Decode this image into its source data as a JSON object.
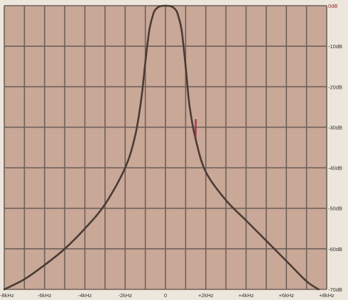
{
  "chart_data": {
    "type": "line",
    "title": "",
    "xlabel": "",
    "ylabel": "",
    "x_ticks": [
      "-8kHz",
      "-6kHz",
      "-4kHz",
      "-2kHz",
      "0",
      "+2kHz",
      "+4kHz",
      "+6kHz",
      "+8kHz"
    ],
    "y_ticks": [
      "0dB",
      "-10dB",
      "-20dB",
      "-30dB",
      "-40dB",
      "-50dB",
      "-60dB",
      "-70dB"
    ],
    "xlim": [
      -8,
      8
    ],
    "ylim": [
      -70,
      0
    ],
    "x_unit": "kHz",
    "y_unit": "dB",
    "grid": true,
    "colors": {
      "background": "#c9a898",
      "grid": "#6e6058",
      "curve": "#4a3c34",
      "reference_label": "#9a2a2a",
      "marker": "#a8324a"
    },
    "series": [
      {
        "x": [
          -8.0,
          -7.0,
          -6.0,
          -5.0,
          -4.0,
          -3.0,
          -2.0,
          -1.5,
          -1.2,
          -1.0,
          -0.8,
          -0.6,
          -0.5,
          -0.3,
          0.0,
          0.3,
          0.5,
          0.6,
          0.8,
          1.0,
          1.2,
          1.5,
          2.0,
          3.0,
          4.0,
          5.0,
          6.0,
          7.0,
          7.6
        ],
        "y": [
          -70.0,
          -67.5,
          -64.0,
          -60.0,
          -55.0,
          -49.0,
          -40.0,
          -32.0,
          -23.0,
          -14.0,
          -6.0,
          -2.0,
          -1.0,
          -0.2,
          0.0,
          -0.2,
          -1.0,
          -2.0,
          -6.0,
          -15.0,
          -25.0,
          -33.0,
          -41.0,
          -48.0,
          -53.0,
          -58.0,
          -63.0,
          -68.0,
          -70.0
        ]
      }
    ],
    "marker": {
      "x": 1.5,
      "y": [
        -28.0,
        -32.5
      ]
    }
  }
}
